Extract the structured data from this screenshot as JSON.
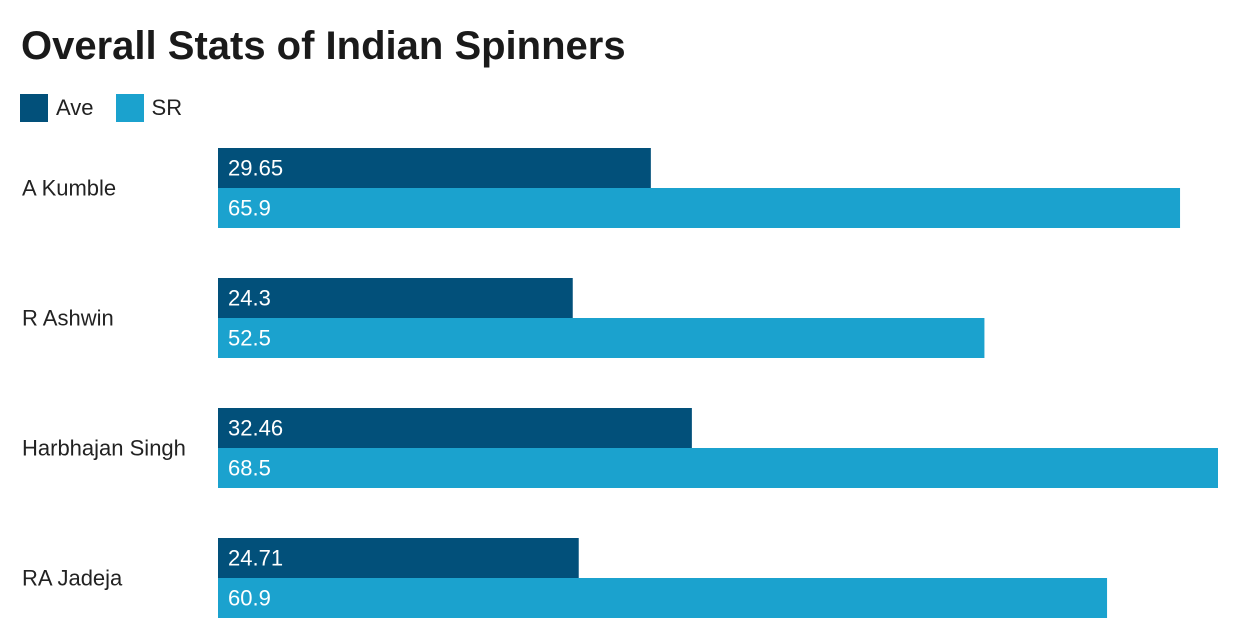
{
  "chart_data": {
    "type": "bar",
    "orientation": "horizontal",
    "title": "Overall Stats of Indian Spinners",
    "categories": [
      "A Kumble",
      "R Ashwin",
      "Harbhajan Singh",
      "RA Jadeja"
    ],
    "series": [
      {
        "name": "Ave",
        "color": "#02507a",
        "values": [
          29.65,
          24.3,
          32.46,
          24.71
        ],
        "value_labels": [
          "29.65",
          "24.3",
          "32.46",
          "24.71"
        ]
      },
      {
        "name": "SR",
        "color": "#1ba2ce",
        "values": [
          65.9,
          52.5,
          68.5,
          60.9
        ],
        "value_labels": [
          "65.9",
          "52.5",
          "68.5",
          "60.9"
        ]
      }
    ],
    "xlim": [
      0,
      68.5
    ],
    "grid": false,
    "legend_position": "top-left"
  }
}
